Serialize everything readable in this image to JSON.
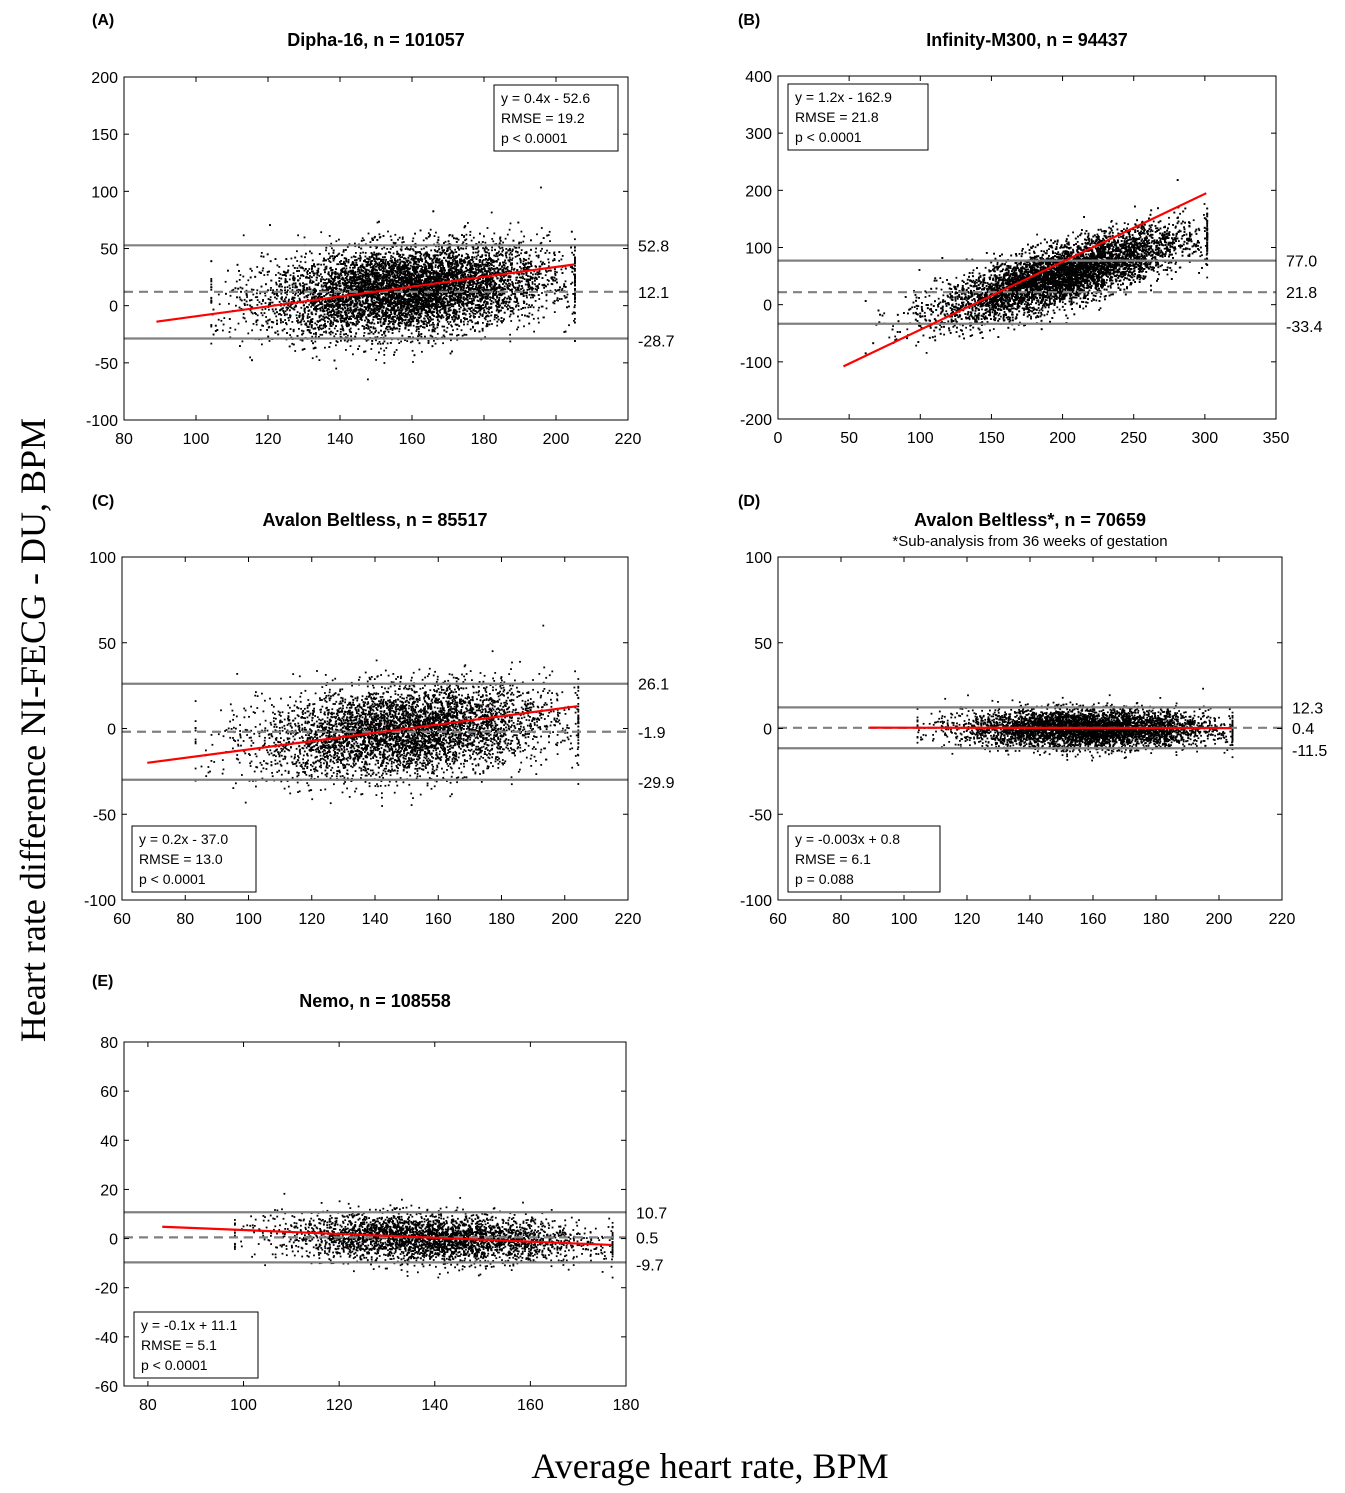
{
  "figure": {
    "ylabel": "Heart rate difference NI-FECG - DU, BPM",
    "xlabel": "Average heart rate, BPM"
  },
  "colors": {
    "fit": "#ff0000",
    "loa": "#808080",
    "points": "#000000"
  },
  "chart_data": [
    {
      "type": "scatter",
      "panel": "(A)",
      "title": "Dipha-16, n = 101057",
      "subtitle": "",
      "xlim": [
        80,
        220
      ],
      "ylim": [
        -100,
        200
      ],
      "xticks": [
        80,
        100,
        120,
        140,
        160,
        180,
        200,
        220
      ],
      "yticks": [
        -100,
        -50,
        0,
        50,
        100,
        150,
        200
      ],
      "limits_of_agreement": {
        "upper": 52.8,
        "mean": 12.1,
        "lower": -28.7
      },
      "limit_labels": {
        "upper": "52.8",
        "mean": "12.1",
        "lower": "-28.7"
      },
      "regression": {
        "x": [
          89,
          205
        ],
        "y": [
          -14,
          36
        ]
      },
      "stats_box": [
        "y = 0.4x - 52.6",
        "RMSE = 19.2",
        "p < 0.0001"
      ],
      "stats_position": "top-right",
      "density": "dense"
    },
    {
      "type": "scatter",
      "panel": "(B)",
      "title": "Infinity-M300, n = 94437",
      "subtitle": "",
      "xlim": [
        0,
        350
      ],
      "ylim": [
        -200,
        400
      ],
      "xticks": [
        0,
        50,
        100,
        150,
        200,
        250,
        300,
        350
      ],
      "yticks": [
        -200,
        -100,
        0,
        100,
        200,
        300,
        400
      ],
      "limits_of_agreement": {
        "upper": 77.0,
        "mean": 21.8,
        "lower": -33.4
      },
      "limit_labels": {
        "upper": "77.0",
        "mean": "21.8",
        "lower": "-33.4"
      },
      "regression": {
        "x": [
          46,
          301
        ],
        "y": [
          -108,
          195
        ]
      },
      "stats_box": [
        "y = 1.2x - 162.9",
        "RMSE = 21.8",
        "p < 0.0001"
      ],
      "stats_position": "top-left",
      "density": "dense"
    },
    {
      "type": "scatter",
      "panel": "(C)",
      "title": "Avalon Beltless, n = 85517",
      "subtitle": "",
      "xlim": [
        60,
        220
      ],
      "ylim": [
        -100,
        100
      ],
      "xticks": [
        60,
        80,
        100,
        120,
        140,
        160,
        180,
        200,
        220
      ],
      "yticks": [
        -100,
        -50,
        0,
        50,
        100
      ],
      "limits_of_agreement": {
        "upper": 26.1,
        "mean": -1.9,
        "lower": -29.9
      },
      "limit_labels": {
        "upper": "26.1",
        "mean": "-1.9",
        "lower": "-29.9"
      },
      "regression": {
        "x": [
          68,
          204
        ],
        "y": [
          -20,
          13
        ]
      },
      "stats_box": [
        "y = 0.2x - 37.0",
        "RMSE = 13.0",
        "p < 0.0001"
      ],
      "stats_position": "bottom-left",
      "density": "medium"
    },
    {
      "type": "scatter",
      "panel": "(D)",
      "title": "Avalon Beltless*, n = 70659",
      "subtitle": "*Sub-analysis from 36 weeks of gestation",
      "xlim": [
        60,
        220
      ],
      "ylim": [
        -100,
        100
      ],
      "xticks": [
        60,
        80,
        100,
        120,
        140,
        160,
        180,
        200,
        220
      ],
      "yticks": [
        -100,
        -50,
        0,
        50,
        100
      ],
      "limits_of_agreement": {
        "upper": 12.3,
        "mean": 0.4,
        "lower": -11.5
      },
      "limit_labels": {
        "upper": "12.3",
        "mean": "0.4",
        "lower": "-11.5"
      },
      "regression": {
        "x": [
          89,
          204
        ],
        "y": [
          0.5,
          0.2
        ]
      },
      "stats_box": [
        "y = -0.003x + 0.8",
        "RMSE = 6.1",
        "p = 0.088"
      ],
      "stats_position": "bottom-left",
      "density": "medium"
    },
    {
      "type": "scatter",
      "panel": "(E)",
      "title": "Nemo, n = 108558",
      "subtitle": "",
      "xlim": [
        75,
        180
      ],
      "ylim": [
        -60,
        80
      ],
      "xticks": [
        80,
        100,
        120,
        140,
        160,
        180
      ],
      "yticks": [
        -60,
        -40,
        -20,
        0,
        20,
        40,
        60,
        80
      ],
      "limits_of_agreement": {
        "upper": 10.7,
        "mean": 0.5,
        "lower": -9.7
      },
      "limit_labels": {
        "upper": "10.7",
        "mean": "0.5",
        "lower": "-9.7"
      },
      "regression": {
        "x": [
          83,
          177
        ],
        "y": [
          4.8,
          -2.6
        ]
      },
      "stats_box": [
        "y = -0.1x + 11.1",
        "RMSE = 5.1",
        "p < 0.0001"
      ],
      "stats_position": "bottom-left",
      "density": "light"
    }
  ]
}
